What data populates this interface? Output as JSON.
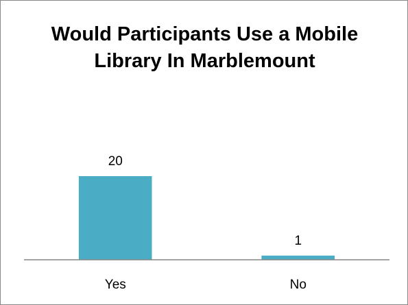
{
  "chart_data": {
    "type": "bar",
    "title": "Would Participants Use a Mobile Library In Marblemount",
    "categories": [
      "Yes",
      "No"
    ],
    "values": [
      20,
      1
    ],
    "ylim": [
      0,
      25
    ],
    "xlabel": "",
    "ylabel": "",
    "grid": false,
    "legend": "none",
    "data_labels": true,
    "bar_color": "#4BACC6",
    "axis_color": "#868686"
  }
}
